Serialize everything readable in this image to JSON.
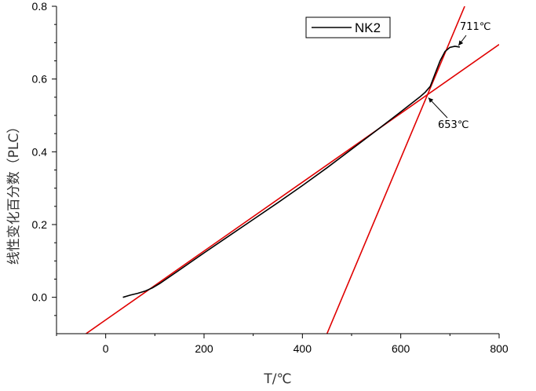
{
  "chart_data": {
    "type": "line",
    "xlabel": "T/℃",
    "ylabel": "线性变化百分数（PLC）",
    "xlim": [
      -100,
      800
    ],
    "ylim": [
      -0.1,
      0.8
    ],
    "x_ticks": [
      0,
      200,
      400,
      600,
      800
    ],
    "y_ticks": [
      0.0,
      0.2,
      0.4,
      0.6,
      0.8
    ],
    "grid": false,
    "legend_position": "top-right",
    "series": [
      {
        "name": "NK2",
        "color": "#000000",
        "x": [
          35,
          50,
          65,
          80,
          95,
          110,
          150,
          200,
          250,
          300,
          350,
          400,
          450,
          500,
          550,
          600,
          620,
          640,
          650,
          660,
          670,
          680,
          690,
          700,
          710,
          720
        ],
        "y": [
          0.0,
          0.006,
          0.011,
          0.017,
          0.026,
          0.038,
          0.075,
          0.122,
          0.168,
          0.214,
          0.26,
          0.307,
          0.356,
          0.407,
          0.458,
          0.51,
          0.531,
          0.552,
          0.564,
          0.58,
          0.615,
          0.65,
          0.676,
          0.687,
          0.69,
          0.688
        ]
      }
    ],
    "fit_lines": [
      {
        "color": "#e00000",
        "x": [
          -40,
          800
        ],
        "y": [
          -0.1,
          0.695
        ]
      },
      {
        "color": "#e00000",
        "x": [
          450,
          730
        ],
        "y": [
          -0.1,
          0.8
        ]
      }
    ],
    "annotations": [
      {
        "text": "711℃",
        "x": 711,
        "y": 0.69
      },
      {
        "text": "653℃",
        "x": 653,
        "y": 0.555
      }
    ]
  }
}
